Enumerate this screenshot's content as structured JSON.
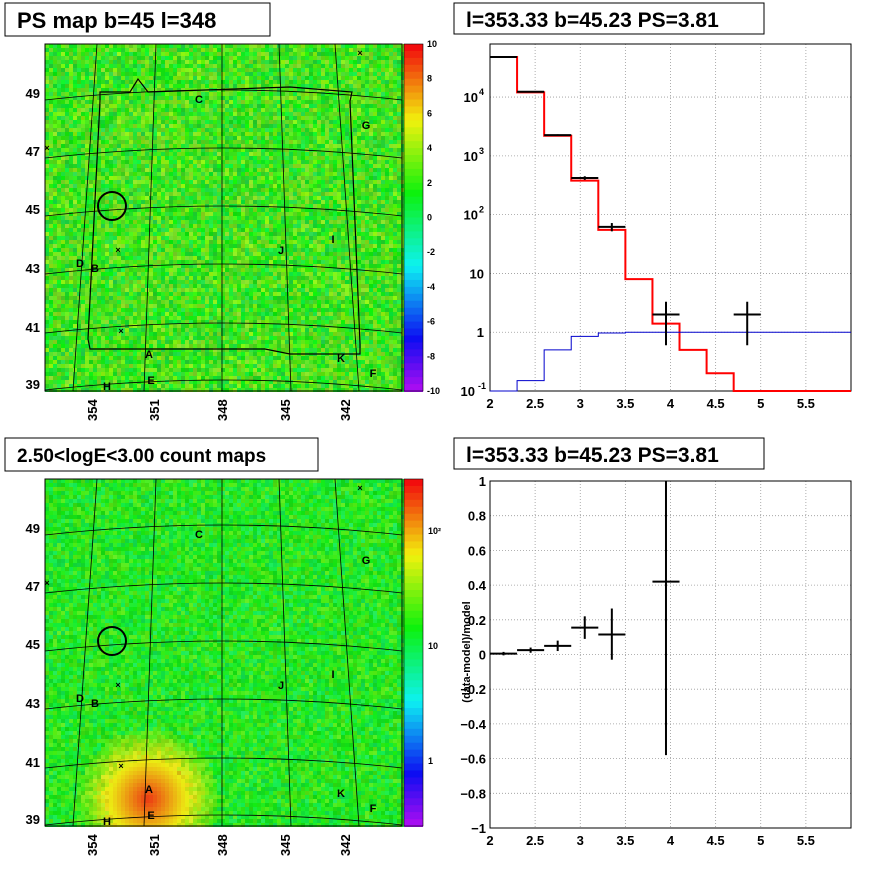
{
  "panels": {
    "ps_map": {
      "title": "PS map b=45 l=348"
    },
    "spectrum": {
      "title": "l=353.33 b=45.23 PS=3.81"
    },
    "count_map": {
      "title": "2.50<logE<3.00 count maps"
    },
    "residual": {
      "title": "l=353.33 b=45.23 PS=3.81"
    }
  },
  "sky_maps": {
    "lat_ticks": [
      "49",
      "47",
      "45",
      "43",
      "41",
      "39"
    ],
    "lon_ticks": [
      "354",
      "351",
      "348",
      "345",
      "342"
    ],
    "sources": [
      "C",
      "G",
      "D",
      "B",
      "J",
      "I",
      "A",
      "K",
      "F",
      "E",
      "H"
    ],
    "ps_map_palette_ticks": [
      "10",
      "8",
      "6",
      "4",
      "2",
      "0",
      "-2",
      "-4",
      "-6",
      "-8",
      "-10"
    ],
    "count_map_palette_ticks": [
      "10²",
      "10",
      "1"
    ]
  },
  "colors": {
    "data": "#000000",
    "model": "#ff0000",
    "ps_model": "#0000cc"
  },
  "chart_data": [
    {
      "type": "line",
      "panel": "spectrum",
      "title": "l=353.33 b=45.23 PS=3.81",
      "log_y": true,
      "xlim": [
        2,
        6
      ],
      "ylim": [
        0.1,
        80000
      ],
      "x_ticks": [
        "2",
        "2.5",
        "3",
        "3.5",
        "4",
        "4.5",
        "5",
        "5.5"
      ],
      "y_ticks": [
        {
          "v": 10000,
          "label": "10",
          "exp": "4"
        },
        {
          "v": 1000,
          "label": "10",
          "exp": "3"
        },
        {
          "v": 100,
          "label": "10",
          "exp": "2"
        },
        {
          "v": 10,
          "label": "10",
          "exp": ""
        },
        {
          "v": 1,
          "label": "1",
          "exp": ""
        },
        {
          "v": 0.1,
          "label": "10",
          "exp": "-1"
        }
      ],
      "grid": true,
      "bin_edges": [
        2.0,
        2.3,
        2.6,
        2.9,
        3.2,
        3.5,
        3.8,
        4.1,
        4.4,
        4.7,
        5.0,
        5.3,
        5.6,
        6.0
      ],
      "series": [
        {
          "role": "model",
          "values": [
            48000,
            12000,
            2200,
            380,
            55,
            8,
            1.4,
            0.5,
            0.2,
            0.1,
            0.1,
            0.1,
            0.1
          ]
        },
        {
          "role": "ps_model",
          "values": [
            0.1,
            0.15,
            0.5,
            0.85,
            0.97,
            1.0,
            1.0,
            1.0,
            1.0,
            1.0,
            1.0,
            1.0,
            1.0
          ]
        }
      ],
      "data_points": [
        {
          "x": 2.15,
          "y": 48000,
          "ylo": 47500,
          "yhi": 48500
        },
        {
          "x": 2.45,
          "y": 12300,
          "ylo": 12100,
          "yhi": 12500
        },
        {
          "x": 2.75,
          "y": 2250,
          "ylo": 2180,
          "yhi": 2320
        },
        {
          "x": 3.05,
          "y": 420,
          "ylo": 390,
          "yhi": 450
        },
        {
          "x": 3.35,
          "y": 62,
          "ylo": 52,
          "yhi": 72
        },
        {
          "x": 3.95,
          "y": 2,
          "ylo": 0.6,
          "yhi": 3.3
        },
        {
          "x": 4.85,
          "y": 2,
          "ylo": 0.6,
          "yhi": 3.3
        }
      ]
    },
    {
      "type": "scatter",
      "panel": "residual",
      "title": "l=353.33 b=45.23 PS=3.81",
      "ylabel": "(data-model)/model",
      "xlim": [
        2,
        6
      ],
      "ylim": [
        -1,
        1
      ],
      "x_ticks": [
        "2",
        "2.5",
        "3",
        "3.5",
        "4",
        "4.5",
        "5",
        "5.5"
      ],
      "y_ticks": [
        "1",
        "0.8",
        "0.6",
        "0.4",
        "0.2",
        "0",
        "−0.2",
        "−0.4",
        "−0.6",
        "−0.8",
        "−1"
      ],
      "grid": true,
      "points": [
        {
          "x": 2.15,
          "y": 0.005,
          "xerr": 0.15,
          "ylo": -0.005,
          "yhi": 0.015
        },
        {
          "x": 2.45,
          "y": 0.025,
          "xerr": 0.15,
          "ylo": 0.01,
          "yhi": 0.04
        },
        {
          "x": 2.75,
          "y": 0.05,
          "xerr": 0.15,
          "ylo": 0.02,
          "yhi": 0.08
        },
        {
          "x": 3.05,
          "y": 0.155,
          "xerr": 0.15,
          "ylo": 0.09,
          "yhi": 0.22
        },
        {
          "x": 3.35,
          "y": 0.115,
          "xerr": 0.15,
          "ylo": -0.03,
          "yhi": 0.265
        },
        {
          "x": 3.95,
          "y": 0.42,
          "xerr": 0.15,
          "ylo": -0.58,
          "yhi": 1.0
        }
      ]
    }
  ]
}
